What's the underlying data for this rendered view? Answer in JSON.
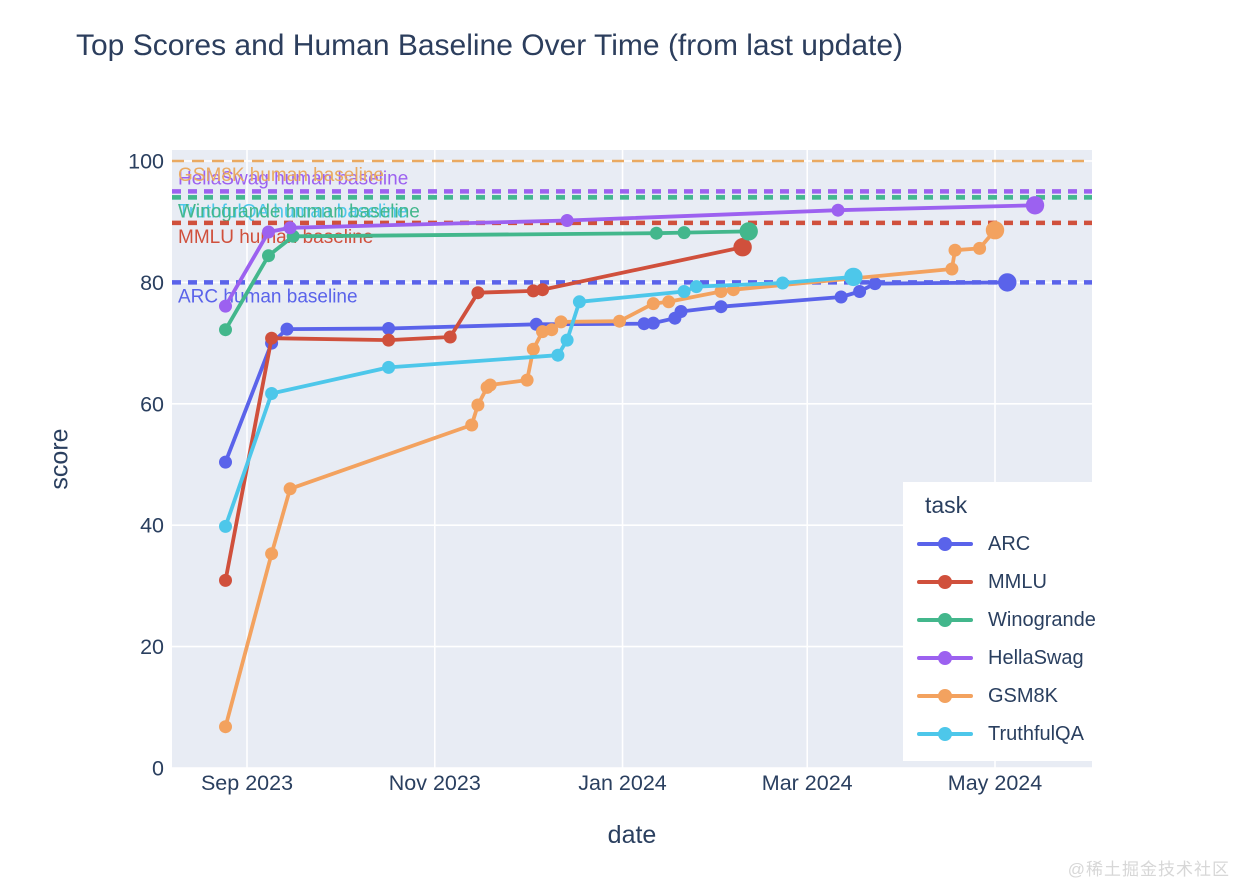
{
  "page": {
    "watermark": "@稀土掘金技术社区"
  },
  "chart_data": {
    "type": "line",
    "title": "Top Scores and Human Baseline Over Time (from last update)",
    "xlabel": "date",
    "ylabel": "score",
    "legend_title": "task",
    "ylim": [
      0,
      100
    ],
    "yticks": [
      0,
      20,
      40,
      60,
      80,
      100
    ],
    "xticks": [
      {
        "date": "2023-09-01",
        "label": "Sep 2023"
      },
      {
        "date": "2023-11-01",
        "label": "Nov 2023"
      },
      {
        "date": "2024-01-01",
        "label": "Jan 2024"
      },
      {
        "date": "2024-03-01",
        "label": "Mar 2024"
      },
      {
        "date": "2024-05-01",
        "label": "May 2024"
      }
    ],
    "grid": true,
    "legend_position": "inside-bottom-right",
    "colors": {
      "plot_bg": "#e8ecf4",
      "grid": "#ffffff",
      "text": "#2a3f5f",
      "title": "#2c3e5d"
    },
    "series": [
      {
        "name": "ARC",
        "color": "#5a63ea",
        "points": [
          [
            "2023-08-25",
            50.4
          ],
          [
            "2023-09-09",
            70.0
          ],
          [
            "2023-09-14",
            72.3
          ],
          [
            "2023-10-17",
            72.4
          ],
          [
            "2023-12-04",
            73.1
          ],
          [
            "2024-01-08",
            73.2
          ],
          [
            "2024-01-11",
            73.3
          ],
          [
            "2024-01-18",
            74.1
          ],
          [
            "2024-01-20",
            75.2
          ],
          [
            "2024-02-02",
            76.0
          ],
          [
            "2024-03-12",
            77.6
          ],
          [
            "2024-03-18",
            78.5
          ],
          [
            "2024-03-23",
            79.8
          ],
          [
            "2024-05-05",
            80.0
          ]
        ]
      },
      {
        "name": "MMLU",
        "color": "#d0503c",
        "points": [
          [
            "2023-08-25",
            30.9
          ],
          [
            "2023-09-09",
            70.8
          ],
          [
            "2023-10-17",
            70.5
          ],
          [
            "2023-11-06",
            71.0
          ],
          [
            "2023-11-15",
            78.3
          ],
          [
            "2023-12-03",
            78.6
          ],
          [
            "2023-12-06",
            78.8
          ],
          [
            "2024-02-09",
            85.8
          ]
        ]
      },
      {
        "name": "Winogrande",
        "color": "#43b78c",
        "points": [
          [
            "2023-08-25",
            72.2
          ],
          [
            "2023-09-08",
            84.4
          ],
          [
            "2023-09-16",
            87.6
          ],
          [
            "2024-01-12",
            88.1
          ],
          [
            "2024-01-21",
            88.2
          ],
          [
            "2024-02-11",
            88.4
          ]
        ]
      },
      {
        "name": "HellaSwag",
        "color": "#9c61f0",
        "points": [
          [
            "2023-08-25",
            76.1
          ],
          [
            "2023-09-08",
            88.3
          ],
          [
            "2023-09-15",
            89.0
          ],
          [
            "2023-12-14",
            90.2
          ],
          [
            "2024-03-11",
            91.9
          ],
          [
            "2024-05-14",
            92.7
          ]
        ]
      },
      {
        "name": "GSM8K",
        "color": "#f3a25f",
        "points": [
          [
            "2023-08-25",
            6.8
          ],
          [
            "2023-09-09",
            35.3
          ],
          [
            "2023-09-15",
            46.0
          ],
          [
            "2023-11-13",
            56.5
          ],
          [
            "2023-11-15",
            59.8
          ],
          [
            "2023-11-18",
            62.7
          ],
          [
            "2023-11-19",
            63.1
          ],
          [
            "2023-12-01",
            63.9
          ],
          [
            "2023-12-03",
            69.0
          ],
          [
            "2023-12-06",
            71.9
          ],
          [
            "2023-12-09",
            72.2
          ],
          [
            "2023-12-12",
            73.5
          ],
          [
            "2023-12-31",
            73.6
          ],
          [
            "2024-01-11",
            76.5
          ],
          [
            "2024-01-16",
            76.8
          ],
          [
            "2024-02-02",
            78.5
          ],
          [
            "2024-02-06",
            78.8
          ],
          [
            "2024-04-17",
            82.2
          ],
          [
            "2024-04-18",
            85.3
          ],
          [
            "2024-04-26",
            85.6
          ],
          [
            "2024-05-01",
            88.6
          ]
        ]
      },
      {
        "name": "TruthfulQA",
        "color": "#4dc7ea",
        "points": [
          [
            "2023-08-25",
            39.8
          ],
          [
            "2023-09-09",
            61.7
          ],
          [
            "2023-10-17",
            66.0
          ],
          [
            "2023-12-11",
            68.0
          ],
          [
            "2023-12-14",
            70.5
          ],
          [
            "2023-12-18",
            76.8
          ],
          [
            "2024-01-21",
            78.5
          ],
          [
            "2024-01-25",
            79.3
          ],
          [
            "2024-02-22",
            79.9
          ],
          [
            "2024-03-16",
            80.9
          ]
        ]
      }
    ],
    "baselines": [
      {
        "label": "HellaSwag human baseline",
        "value": 95,
        "color": "#9c61f0",
        "dash": "dot",
        "label_position": "above"
      },
      {
        "label": "GSM8K human baseline",
        "value": 100,
        "color": "#eaaa62",
        "dash": "longdash",
        "label_position": "below"
      },
      {
        "label": "TruthfulQA human baseline",
        "value": 94,
        "color": "#4dc7ea",
        "dash": "dot",
        "label_position": "below"
      },
      {
        "label": "Winogrande human baseline",
        "value": 94,
        "color": "#43b78c",
        "dash": "dot",
        "label_position": "below"
      },
      {
        "label": "MMLU human baseline",
        "value": 89.8,
        "color": "#d0503c",
        "dash": "dot",
        "label_position": "below"
      },
      {
        "label": "ARC human baseline",
        "value": 80,
        "color": "#5a63ea",
        "dash": "dot",
        "label_position": "below"
      }
    ]
  }
}
